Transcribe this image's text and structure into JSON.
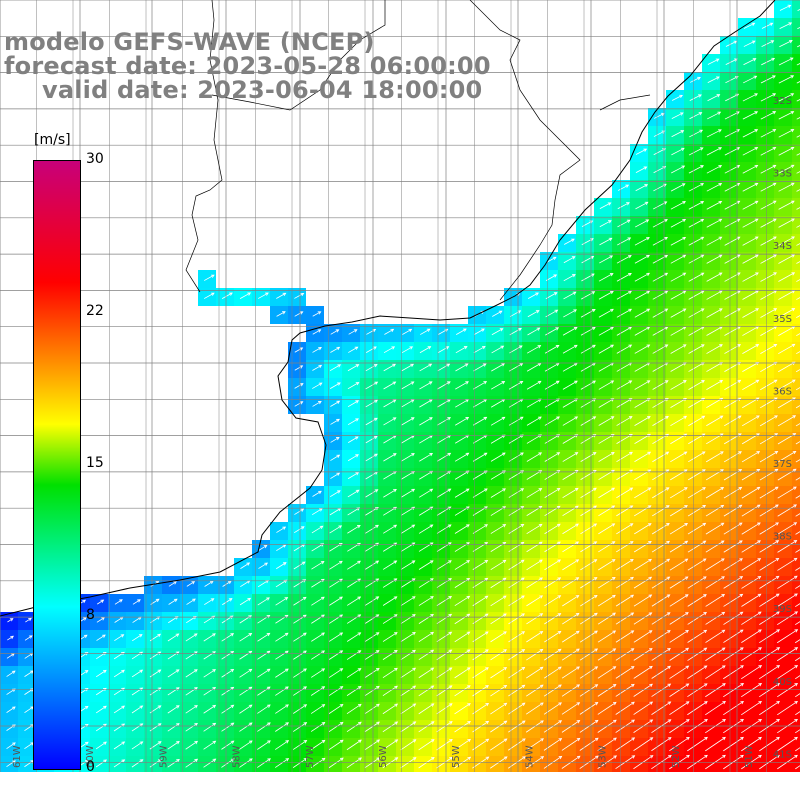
{
  "title": {
    "line1": "modelo GEFS-WAVE (NCEP)",
    "line2": "forecast date: 2023-05-28 06:00:00",
    "line3": "valid date: 2023-06-04 18:00:00"
  },
  "colorbar": {
    "unit": "[m/s]",
    "ticks": [
      "30",
      "22",
      "15",
      "8",
      "0"
    ],
    "min": 0,
    "max": 30,
    "stops": [
      {
        "value": 0,
        "color": "#0000ff"
      },
      {
        "value": 8,
        "color": "#00ffff"
      },
      {
        "value": 14,
        "color": "#00e000"
      },
      {
        "value": 17,
        "color": "#ffff00"
      },
      {
        "value": 20,
        "color": "#ff9000"
      },
      {
        "value": 24,
        "color": "#ff0000"
      },
      {
        "value": 30,
        "color": "#c8007a"
      }
    ]
  },
  "map": {
    "lat_labels": [
      "32S",
      "33S",
      "34S",
      "35S",
      "36S",
      "37S",
      "38S",
      "39S",
      "40S",
      "41S"
    ],
    "lon_labels": [
      "61W",
      "60W",
      "59W",
      "58W",
      "57W",
      "56W",
      "55W",
      "54W",
      "53W",
      "52W",
      "51W"
    ],
    "land_color": "#ffffff",
    "grid_color": "#808080",
    "coast_color": "#000000",
    "arrow_color": "#ffffff"
  }
}
